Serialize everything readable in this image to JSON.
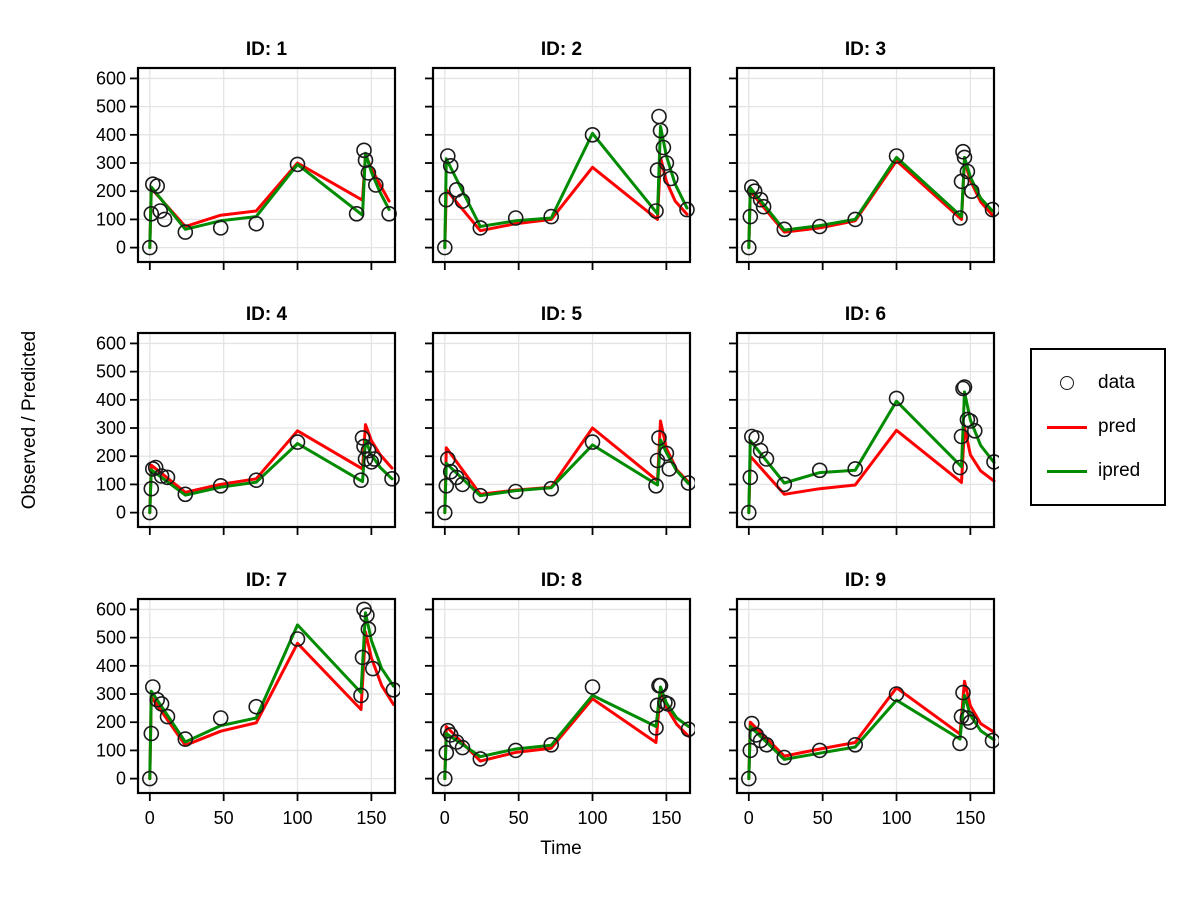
{
  "chart_data": {
    "type": "line",
    "xlabel": "Time",
    "ylabel": "Observed / Predicted",
    "xticks": [
      0,
      50,
      100,
      150
    ],
    "yticks": [
      0,
      100,
      200,
      300,
      400,
      500,
      600
    ],
    "xlim": [
      -8,
      166
    ],
    "ylim": [
      -51,
      637
    ],
    "grid": true,
    "legend": {
      "position": "right",
      "entries": [
        {
          "label": "data",
          "type": "point",
          "color": "#1a1a1a"
        },
        {
          "label": "pred",
          "type": "line",
          "color": "#FF0000"
        },
        {
          "label": "ipred",
          "type": "line",
          "color": "#008B00"
        }
      ]
    },
    "style": {
      "pred_color": "#FF0000",
      "ipred_color": "#008B00",
      "point_color": "#1a1a1a",
      "grid_color": "#E4E4E4",
      "frame_color": "#000000"
    },
    "panels": [
      {
        "title": "ID: 1",
        "data": {
          "x": [
            0,
            1,
            2,
            5,
            7,
            10,
            24,
            48,
            72,
            100,
            140,
            145,
            146,
            148,
            153,
            162
          ],
          "y": [
            0,
            120,
            225,
            218,
            130,
            100,
            55,
            70,
            85,
            295,
            120,
            345,
            310,
            265,
            222,
            120
          ]
        },
        "pred": {
          "x": [
            0,
            1,
            24,
            48,
            72,
            100,
            144,
            146,
            150,
            156,
            162
          ],
          "y": [
            0,
            210,
            75,
            115,
            130,
            300,
            168,
            330,
            280,
            222,
            165
          ]
        },
        "ipred": {
          "x": [
            0,
            1,
            24,
            48,
            72,
            100,
            144,
            146,
            150,
            156,
            162
          ],
          "y": [
            0,
            215,
            65,
            95,
            110,
            295,
            115,
            335,
            268,
            195,
            135
          ]
        }
      },
      {
        "title": "ID: 2",
        "data": {
          "x": [
            0,
            1,
            2,
            4,
            8,
            12,
            24,
            48,
            72,
            100,
            143,
            144,
            145,
            146,
            148,
            150,
            153,
            164
          ],
          "y": [
            0,
            170,
            325,
            290,
            205,
            165,
            70,
            105,
            110,
            400,
            130,
            275,
            465,
            415,
            355,
            300,
            245,
            135
          ]
        },
        "pred": {
          "x": [
            0,
            1,
            24,
            48,
            72,
            100,
            144,
            146,
            150,
            156,
            164
          ],
          "y": [
            0,
            205,
            60,
            85,
            100,
            285,
            100,
            320,
            235,
            165,
            118
          ]
        },
        "ipred": {
          "x": [
            0,
            1,
            24,
            48,
            72,
            100,
            144,
            146,
            150,
            156,
            164
          ],
          "y": [
            0,
            315,
            75,
            95,
            105,
            405,
            120,
            430,
            325,
            225,
            140
          ]
        }
      },
      {
        "title": "ID: 3",
        "data": {
          "x": [
            0,
            1,
            2,
            4,
            8,
            10,
            24,
            48,
            72,
            100,
            143,
            144,
            145,
            146,
            148,
            151,
            165
          ],
          "y": [
            0,
            110,
            215,
            200,
            170,
            145,
            65,
            75,
            100,
            325,
            105,
            235,
            340,
            320,
            270,
            200,
            135
          ]
        },
        "pred": {
          "x": [
            0,
            1,
            24,
            48,
            72,
            100,
            144,
            146,
            150,
            157,
            165
          ],
          "y": [
            0,
            200,
            55,
            70,
            95,
            308,
            100,
            308,
            238,
            162,
            115
          ]
        },
        "ipred": {
          "x": [
            0,
            1,
            24,
            48,
            72,
            100,
            144,
            146,
            150,
            157,
            165
          ],
          "y": [
            0,
            212,
            62,
            78,
            100,
            320,
            110,
            320,
            250,
            175,
            130
          ]
        }
      },
      {
        "title": "ID: 4",
        "data": {
          "x": [
            0,
            1,
            2,
            4,
            8,
            12,
            24,
            48,
            72,
            100,
            143,
            144,
            145,
            146,
            148,
            150,
            152,
            164
          ],
          "y": [
            0,
            85,
            155,
            160,
            130,
            125,
            65,
            95,
            115,
            250,
            115,
            265,
            235,
            190,
            220,
            180,
            190,
            120
          ]
        },
        "pred": {
          "x": [
            0,
            1,
            24,
            48,
            72,
            100,
            144,
            146,
            150,
            156,
            164
          ],
          "y": [
            0,
            168,
            72,
            100,
            120,
            290,
            155,
            312,
            255,
            205,
            158
          ]
        },
        "ipred": {
          "x": [
            0,
            1,
            24,
            48,
            72,
            100,
            144,
            146,
            150,
            156,
            164
          ],
          "y": [
            0,
            152,
            62,
            90,
            108,
            245,
            110,
            256,
            205,
            160,
            120
          ]
        }
      },
      {
        "title": "ID: 5",
        "data": {
          "x": [
            0,
            1,
            2,
            4,
            8,
            12,
            24,
            48,
            72,
            100,
            143,
            144,
            145,
            150,
            152,
            165
          ],
          "y": [
            0,
            95,
            190,
            145,
            125,
            100,
            60,
            75,
            85,
            250,
            95,
            185,
            265,
            210,
            155,
            105
          ]
        },
        "pred": {
          "x": [
            0,
            1,
            24,
            48,
            72,
            100,
            144,
            146,
            150,
            157,
            165
          ],
          "y": [
            0,
            230,
            65,
            80,
            90,
            300,
            113,
            325,
            228,
            152,
            108
          ]
        },
        "ipred": {
          "x": [
            0,
            1,
            24,
            48,
            72,
            100,
            144,
            146,
            150,
            157,
            165
          ],
          "y": [
            0,
            175,
            60,
            78,
            88,
            240,
            98,
            258,
            213,
            148,
            103
          ]
        }
      },
      {
        "title": "ID: 6",
        "data": {
          "x": [
            0,
            1,
            2,
            5,
            8,
            12,
            24,
            48,
            72,
            100,
            143,
            144,
            145,
            146,
            148,
            150,
            153,
            166
          ],
          "y": [
            0,
            125,
            270,
            265,
            220,
            190,
            100,
            150,
            155,
            405,
            160,
            270,
            440,
            445,
            330,
            325,
            290,
            180
          ]
        },
        "pred": {
          "x": [
            0,
            1,
            24,
            48,
            72,
            100,
            144,
            146,
            150,
            157,
            166
          ],
          "y": [
            0,
            200,
            65,
            85,
            98,
            292,
            107,
            302,
            205,
            148,
            112
          ]
        },
        "ipred": {
          "x": [
            0,
            1,
            24,
            48,
            72,
            100,
            144,
            146,
            150,
            157,
            166
          ],
          "y": [
            0,
            255,
            105,
            142,
            150,
            395,
            163,
            428,
            328,
            238,
            178
          ]
        }
      },
      {
        "title": "ID: 7",
        "data": {
          "x": [
            0,
            1,
            2,
            5,
            8,
            12,
            24,
            48,
            72,
            100,
            143,
            144,
            145,
            147,
            148,
            151,
            165
          ],
          "y": [
            0,
            160,
            325,
            280,
            265,
            220,
            140,
            215,
            255,
            495,
            295,
            430,
            600,
            580,
            530,
            390,
            315
          ]
        },
        "pred": {
          "x": [
            0,
            1,
            24,
            48,
            72,
            100,
            143,
            146,
            150,
            157,
            165
          ],
          "y": [
            0,
            290,
            118,
            168,
            198,
            480,
            245,
            520,
            428,
            330,
            263
          ]
        },
        "ipred": {
          "x": [
            0,
            1,
            24,
            48,
            72,
            100,
            143,
            146,
            150,
            157,
            165
          ],
          "y": [
            0,
            310,
            130,
            188,
            215,
            545,
            305,
            588,
            490,
            390,
            328
          ]
        }
      },
      {
        "title": "ID: 8",
        "data": {
          "x": [
            0,
            1,
            2,
            4,
            8,
            12,
            24,
            48,
            72,
            100,
            143,
            144,
            145,
            146,
            149,
            151,
            165
          ],
          "y": [
            0,
            92,
            170,
            155,
            130,
            110,
            70,
            100,
            120,
            325,
            180,
            260,
            330,
            330,
            270,
            265,
            175
          ]
        },
        "pred": {
          "x": [
            0,
            1,
            24,
            48,
            72,
            100,
            143,
            146,
            150,
            157,
            165
          ],
          "y": [
            0,
            185,
            62,
            93,
            108,
            283,
            128,
            316,
            253,
            193,
            150
          ]
        },
        "ipred": {
          "x": [
            0,
            1,
            24,
            48,
            72,
            100,
            143,
            146,
            150,
            157,
            165
          ],
          "y": [
            0,
            160,
            78,
            105,
            118,
            295,
            185,
            325,
            268,
            215,
            185
          ]
        }
      },
      {
        "title": "ID: 9",
        "data": {
          "x": [
            0,
            1,
            2,
            5,
            8,
            12,
            24,
            48,
            72,
            100,
            143,
            144,
            145,
            148,
            150,
            165
          ],
          "y": [
            0,
            100,
            195,
            155,
            135,
            120,
            75,
            100,
            120,
            300,
            125,
            220,
            305,
            215,
            200,
            135
          ]
        },
        "pred": {
          "x": [
            0,
            1,
            24,
            48,
            72,
            100,
            143,
            146,
            150,
            157,
            166
          ],
          "y": [
            0,
            200,
            80,
            105,
            128,
            322,
            158,
            345,
            258,
            195,
            165
          ]
        },
        "ipred": {
          "x": [
            0,
            1,
            24,
            48,
            72,
            100,
            143,
            146,
            150,
            157,
            166
          ],
          "y": [
            0,
            185,
            68,
            90,
            112,
            278,
            140,
            295,
            225,
            170,
            138
          ]
        }
      }
    ]
  }
}
